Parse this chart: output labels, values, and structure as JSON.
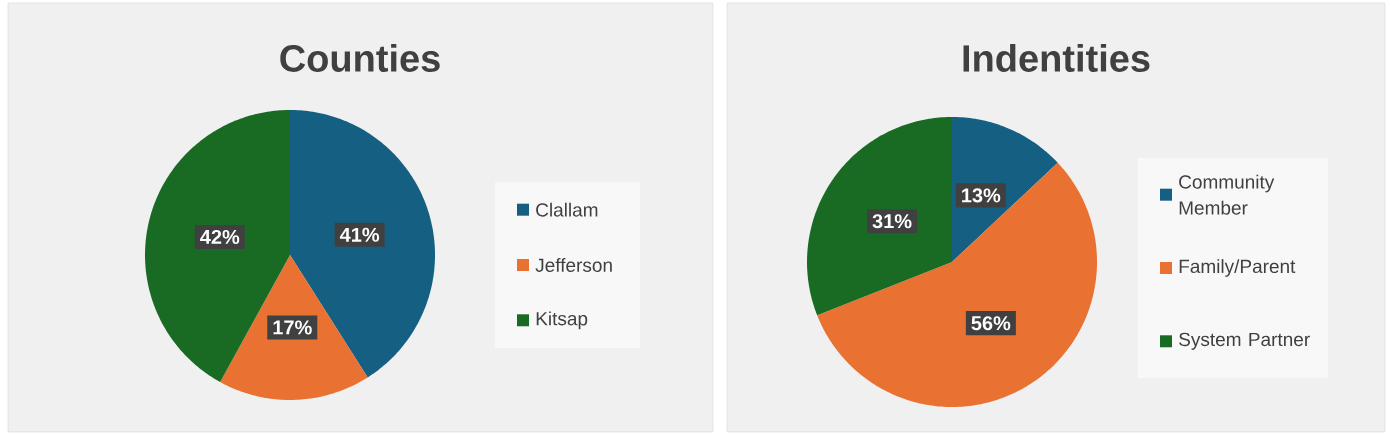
{
  "chart_data": [
    {
      "type": "pie",
      "title": "Counties",
      "categories": [
        "Clallam",
        "Jefferson",
        "Kitsap"
      ],
      "values": [
        41,
        17,
        42
      ],
      "value_labels": [
        "41%",
        "17%",
        "42%"
      ],
      "colors": [
        "#156082",
        "#e97132",
        "#196b24"
      ],
      "legend": "right"
    },
    {
      "type": "pie",
      "title": "Indentities",
      "categories": [
        "Community Member",
        "Family/Parent",
        "System Partner"
      ],
      "values": [
        13,
        56,
        31
      ],
      "value_labels": [
        "13%",
        "56%",
        "31%"
      ],
      "colors": [
        "#156082",
        "#e97132",
        "#196b24"
      ],
      "legend": "right"
    }
  ]
}
